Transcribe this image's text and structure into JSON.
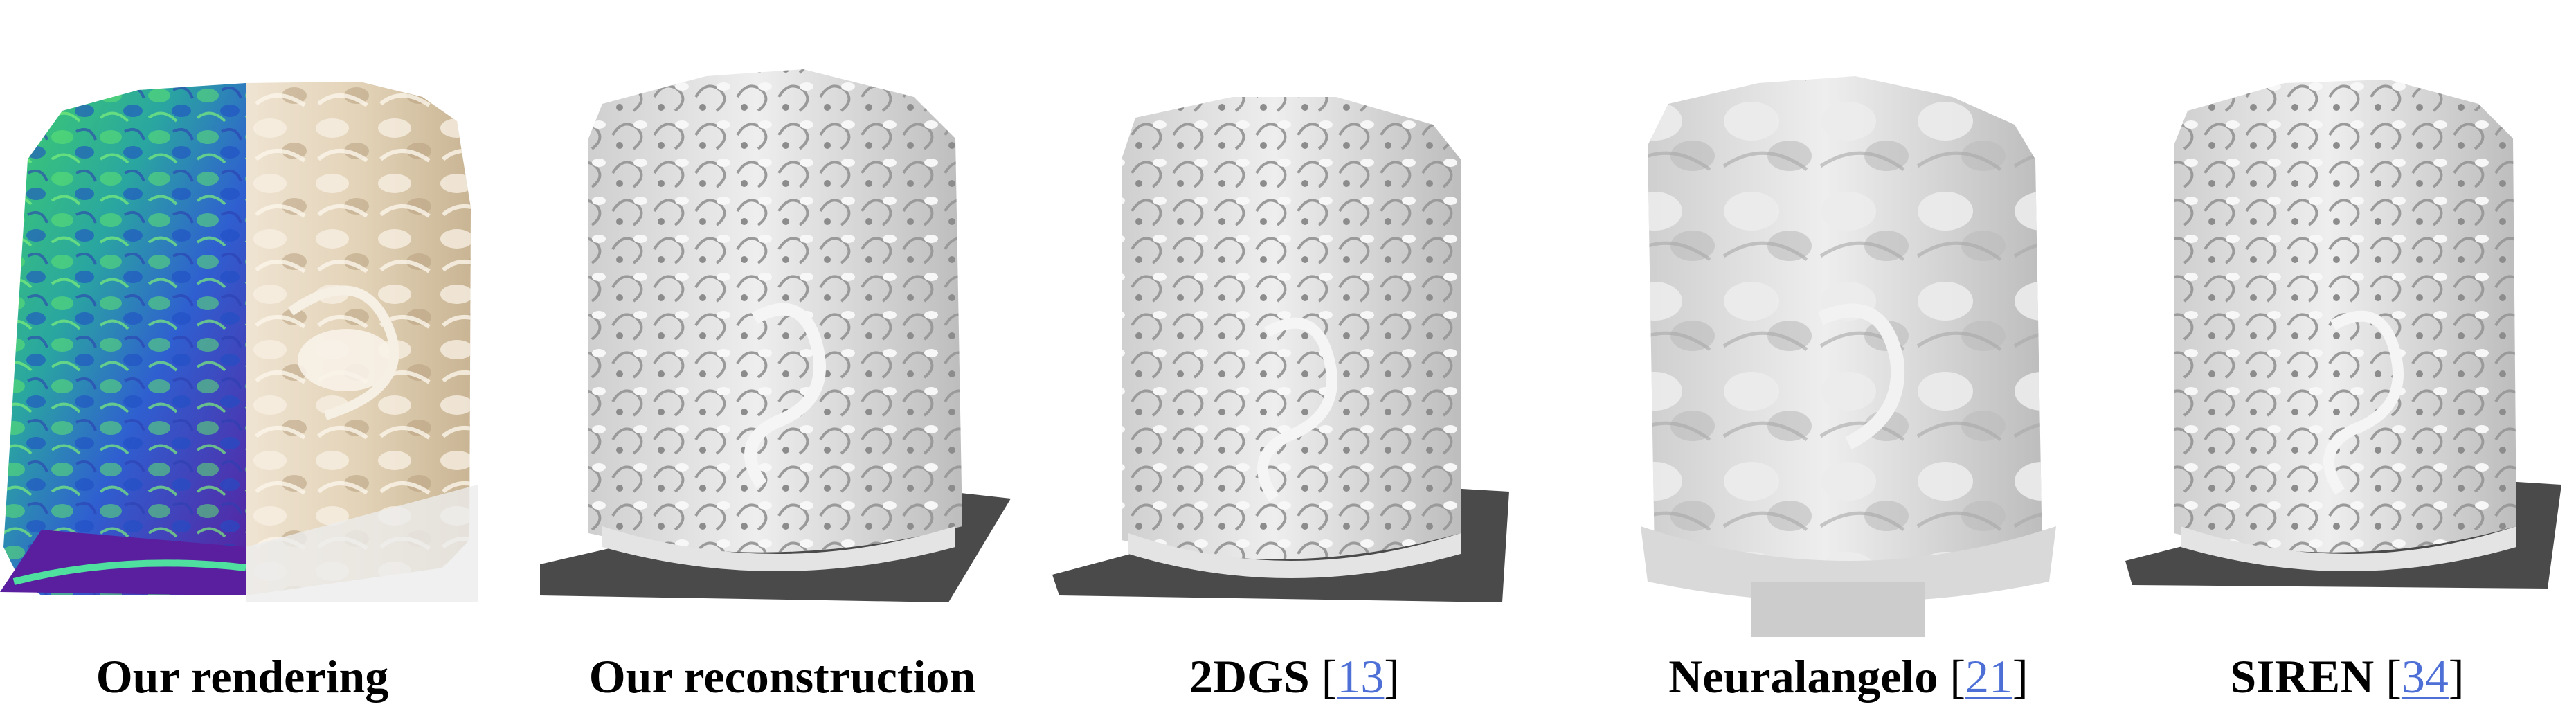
{
  "figure": {
    "panels": [
      {
        "id": "our-rendering",
        "caption": "Our rendering",
        "citation": ""
      },
      {
        "id": "our-reconstruction",
        "caption": "Our reconstruction",
        "citation": ""
      },
      {
        "id": "2dgs",
        "caption": "2DGS",
        "citation": "13"
      },
      {
        "id": "neuralangelo",
        "caption": "Neuralangelo",
        "citation": "21"
      },
      {
        "id": "siren",
        "caption": "SIREN",
        "citation": "34"
      }
    ],
    "colors": {
      "normal_map_green": "#2fb34a",
      "normal_map_blue": "#2f5fd0",
      "normal_map_purple": "#5a1f9e",
      "render_beige": "#e6d9c4",
      "mesh_gray": "#d6d6d6",
      "ground_plane": "#4a4a4a",
      "citation_link": "#4d6fd6"
    }
  }
}
